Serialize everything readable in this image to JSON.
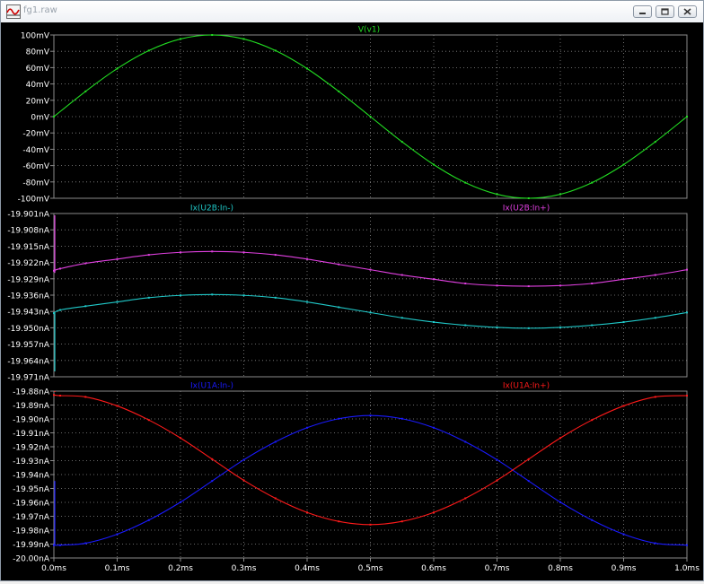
{
  "window": {
    "title": "fg1.raw",
    "buttons": [
      "minimize",
      "maximize",
      "close"
    ],
    "app_icon": "ltspice-waveform-icon"
  },
  "colors": {
    "background": "#000000",
    "grid": "#8a8a8a",
    "axis_text": "#ffffff",
    "green": "#22dd22",
    "magenta": "#e040e0",
    "cyan": "#20c8c8",
    "blue": "#1a1aff",
    "red": "#ff1a1a"
  },
  "chart_data": [
    {
      "type": "line",
      "pane": "top",
      "xlim": [
        0,
        1.0
      ],
      "ylim": [
        -100,
        100
      ],
      "y_ticks": [
        "100mV",
        "80mV",
        "60mV",
        "40mV",
        "20mV",
        "0mV",
        "-20mV",
        "-40mV",
        "-60mV",
        "-80mV",
        "-100mV"
      ],
      "grid": true,
      "series": [
        {
          "name": "V(v1)",
          "color": "#22dd22",
          "x": [
            0,
            0.05,
            0.1,
            0.15,
            0.2,
            0.25,
            0.3,
            0.35,
            0.4,
            0.45,
            0.5,
            0.55,
            0.6,
            0.65,
            0.7,
            0.75,
            0.8,
            0.85,
            0.9,
            0.95,
            1.0
          ],
          "y": [
            0,
            30.9,
            58.8,
            80.9,
            95.1,
            100,
            95.1,
            80.9,
            58.8,
            30.9,
            0,
            -30.9,
            -58.8,
            -80.9,
            -95.1,
            -100,
            -95.1,
            -80.9,
            -58.8,
            -30.9,
            0
          ]
        }
      ]
    },
    {
      "type": "line",
      "pane": "middle",
      "xlim": [
        0,
        1.0
      ],
      "ylim": [
        -19.971,
        -19.894
      ],
      "y_ticks": [
        "-19.901nA",
        "-19.908nA",
        "-19.915nA",
        "-19.922nA",
        "-19.929nA",
        "-19.936nA",
        "-19.943nA",
        "-19.950nA",
        "-19.957nA",
        "-19.964nA",
        "-19.971nA"
      ],
      "grid": true,
      "series": [
        {
          "name": "Ix(U2B:In+)",
          "color": "#e040e0",
          "x": [
            0,
            0.01,
            0.05,
            0.1,
            0.15,
            0.2,
            0.25,
            0.3,
            0.35,
            0.4,
            0.45,
            0.5,
            0.55,
            0.6,
            0.65,
            0.7,
            0.75,
            0.8,
            0.85,
            0.9,
            0.95,
            1.0
          ],
          "y": [
            -19.921,
            -19.92,
            -19.9175,
            -19.9155,
            -19.9135,
            -19.9123,
            -19.9119,
            -19.9123,
            -19.9135,
            -19.9155,
            -19.918,
            -19.9205,
            -19.923,
            -19.925,
            -19.927,
            -19.928,
            -19.9283,
            -19.928,
            -19.927,
            -19.925,
            -19.923,
            -19.9205
          ]
        },
        {
          "name": "Ix(U2B:In-)",
          "color": "#20c8c8",
          "x": [
            0,
            0.01,
            0.05,
            0.1,
            0.15,
            0.2,
            0.25,
            0.3,
            0.35,
            0.4,
            0.45,
            0.5,
            0.55,
            0.6,
            0.65,
            0.7,
            0.75,
            0.8,
            0.85,
            0.9,
            0.95,
            1.0
          ],
          "y": [
            -19.941,
            -19.9395,
            -19.9377,
            -19.9357,
            -19.9337,
            -19.9326,
            -19.9322,
            -19.9326,
            -19.9337,
            -19.9357,
            -19.9382,
            -19.9407,
            -19.9432,
            -19.9452,
            -19.9467,
            -19.9477,
            -19.9481,
            -19.9477,
            -19.9467,
            -19.9452,
            -19.9432,
            -19.9407
          ]
        }
      ]
    },
    {
      "type": "line",
      "pane": "bottom",
      "xlim": [
        0,
        1.0
      ],
      "ylim": [
        -20.0,
        -19.87
      ],
      "x_ticks": [
        "0.0ms",
        "0.1ms",
        "0.2ms",
        "0.3ms",
        "0.4ms",
        "0.5ms",
        "0.6ms",
        "0.7ms",
        "0.8ms",
        "0.9ms",
        "1.0ms"
      ],
      "y_ticks": [
        "-19.88nA",
        "-19.89nA",
        "-19.90nA",
        "-19.91nA",
        "-19.92nA",
        "-19.93nA",
        "-19.94nA",
        "-19.95nA",
        "-19.96nA",
        "-19.97nA",
        "-19.98nA",
        "-19.99nA",
        "-20.00nA"
      ],
      "grid": true,
      "series": [
        {
          "name": "Ix(U1A:In-)",
          "color": "#1a1aff",
          "x": [
            0,
            0.01,
            0.05,
            0.1,
            0.15,
            0.2,
            0.25,
            0.3,
            0.35,
            0.4,
            0.45,
            0.5,
            0.55,
            0.6,
            0.65,
            0.7,
            0.75,
            0.8,
            0.85,
            0.9,
            0.95,
            1.0
          ],
          "y": [
            -19.99,
            -19.99,
            -19.9885,
            -19.9815,
            -19.9705,
            -19.9565,
            -19.94,
            -19.9235,
            -19.9095,
            -19.8985,
            -19.8915,
            -19.889,
            -19.8915,
            -19.8985,
            -19.9095,
            -19.9235,
            -19.94,
            -19.9565,
            -19.9705,
            -19.9815,
            -19.9885,
            -19.99
          ]
        },
        {
          "name": "Ix(U1A:In+)",
          "color": "#ff1a1a",
          "x": [
            0,
            0.01,
            0.05,
            0.1,
            0.15,
            0.2,
            0.25,
            0.3,
            0.35,
            0.4,
            0.45,
            0.5,
            0.55,
            0.6,
            0.65,
            0.7,
            0.75,
            0.8,
            0.85,
            0.9,
            0.95,
            1.0
          ],
          "y": [
            -19.873,
            -19.8735,
            -19.8745,
            -19.8815,
            -19.8925,
            -19.9065,
            -19.923,
            -19.9395,
            -19.9535,
            -19.9645,
            -19.9715,
            -19.974,
            -19.9715,
            -19.9645,
            -19.9535,
            -19.9395,
            -19.923,
            -19.9065,
            -19.8925,
            -19.8815,
            -19.8745,
            -19.8735
          ]
        }
      ]
    }
  ]
}
